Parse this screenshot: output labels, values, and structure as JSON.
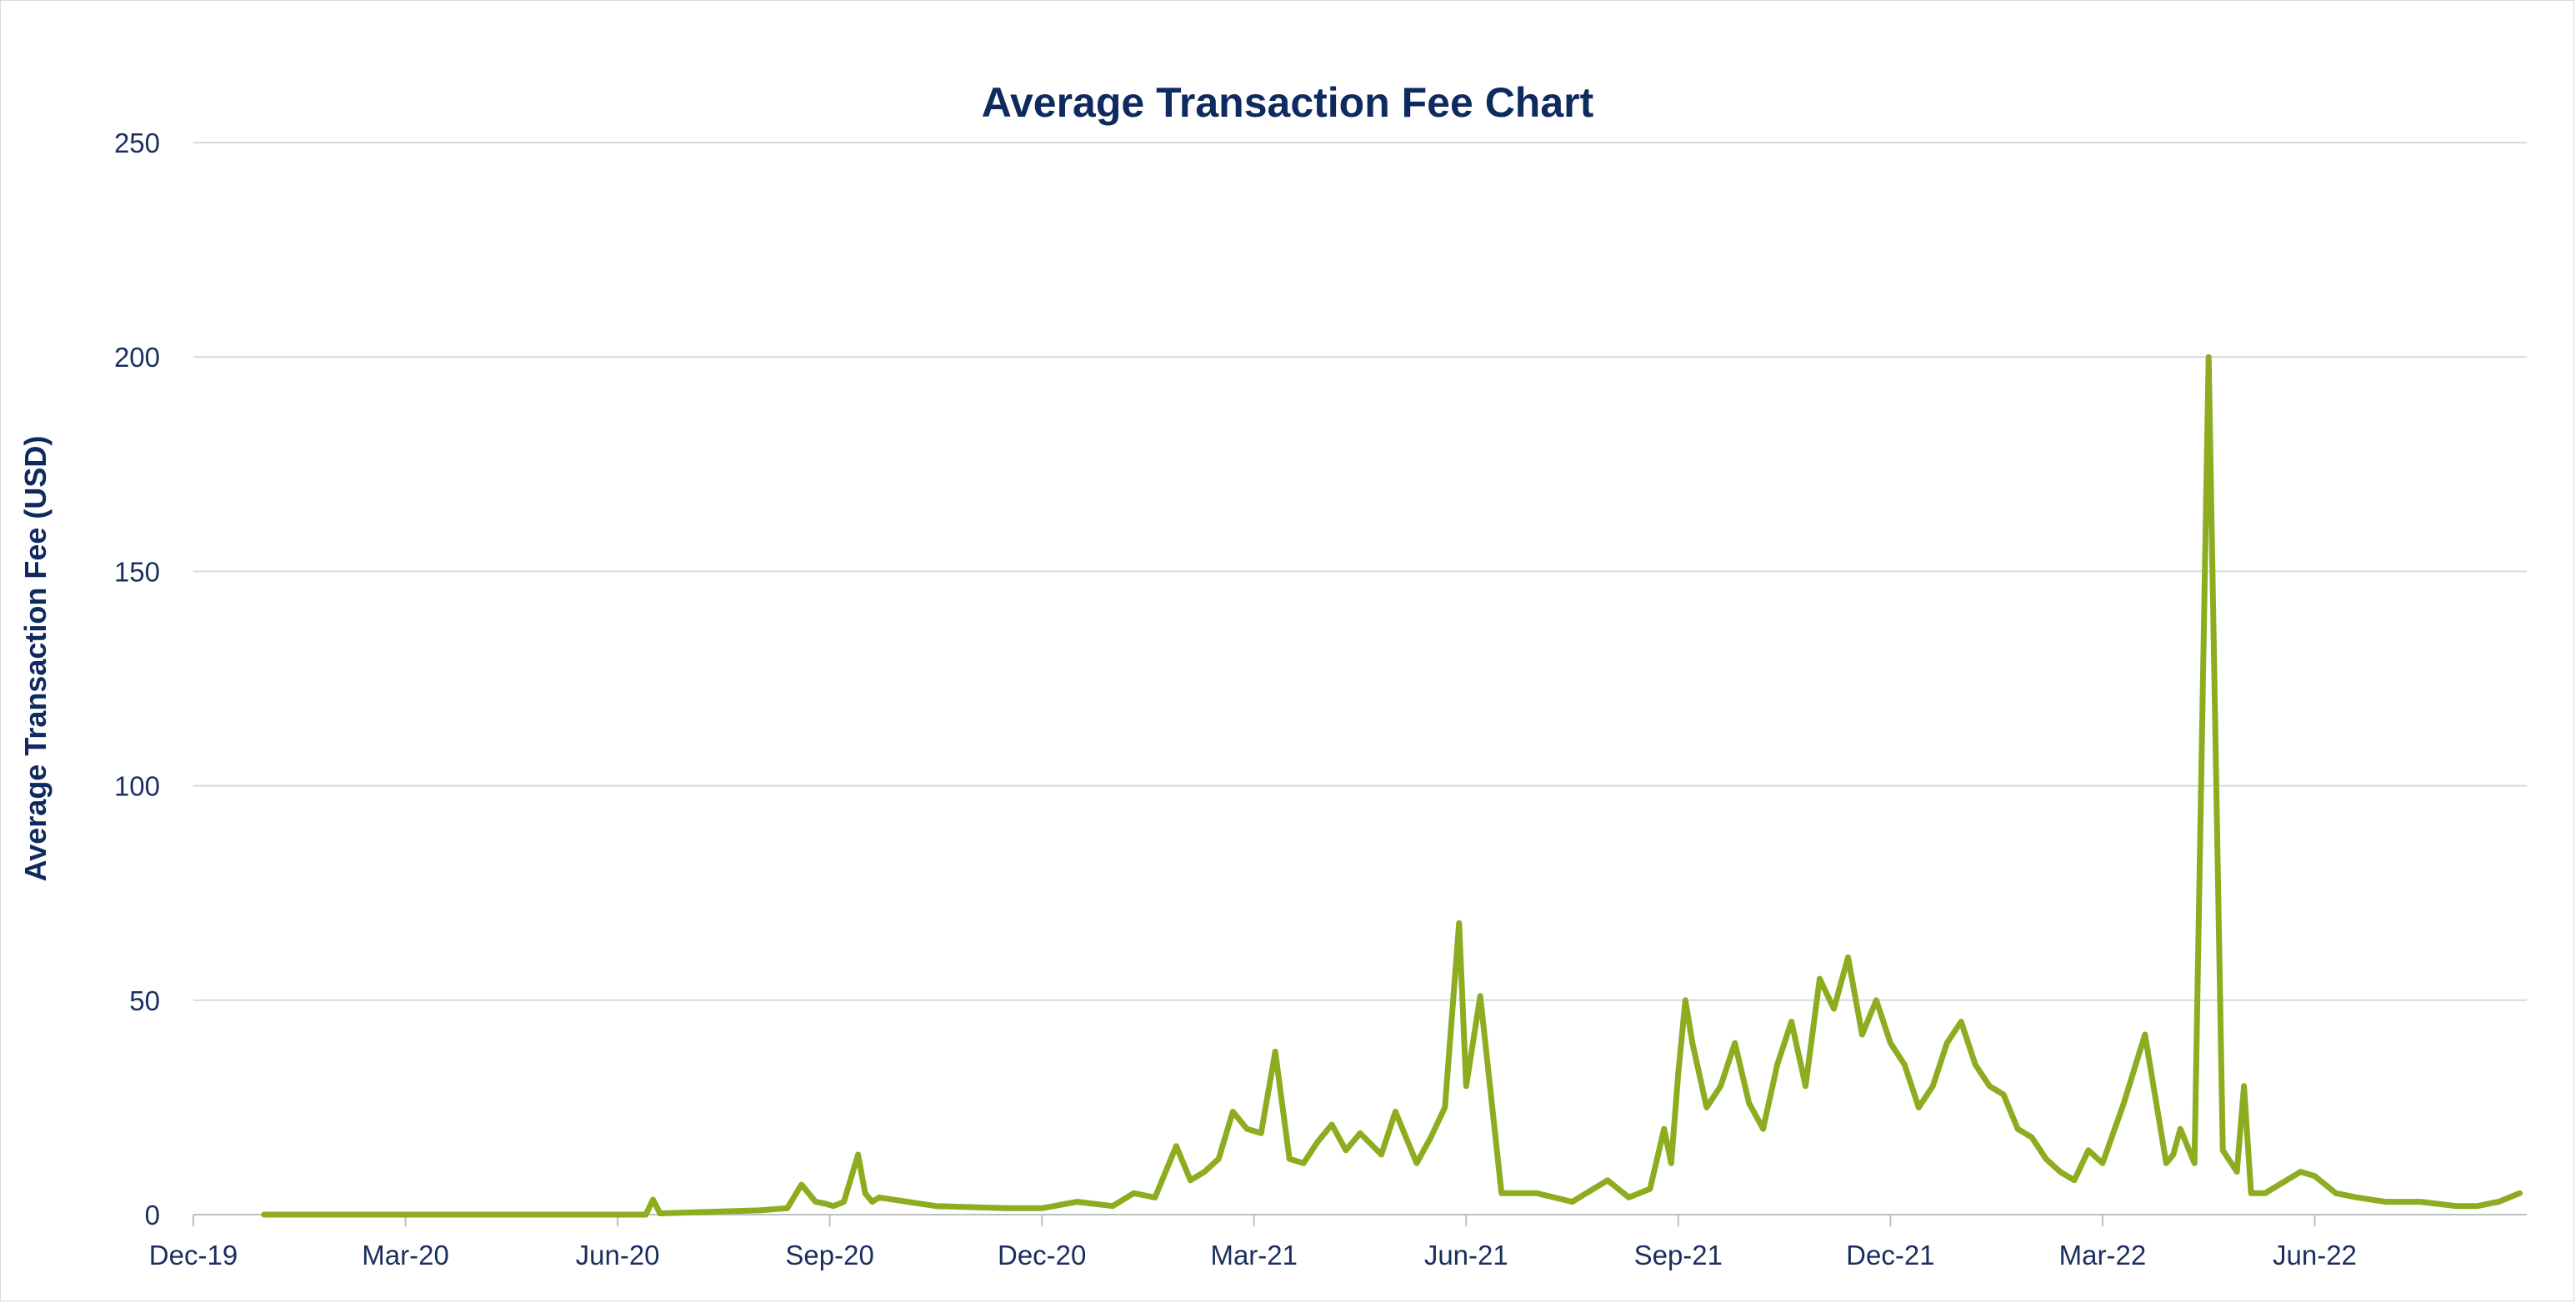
{
  "chart_data": {
    "type": "line",
    "title": "Average Transaction Fee Chart",
    "xlabel": "",
    "ylabel": "Average Transaction Fee (USD)",
    "ylim": [
      0,
      250
    ],
    "yticks": [
      0,
      50,
      100,
      150,
      200,
      250
    ],
    "xlim": [
      0,
      33
    ],
    "grid": true,
    "legend": "none",
    "line_color": "#8dac1f",
    "xtick_labels": [
      "Dec-19",
      "Mar-20",
      "Jun-20",
      "Sep-20",
      "Dec-20",
      "Mar-21",
      "Jun-21",
      "Sep-21",
      "Dec-21",
      "Mar-22",
      "Jun-22"
    ],
    "xtick_positions": [
      0,
      3,
      6,
      9,
      12,
      15,
      18,
      21,
      24,
      27,
      30
    ],
    "series": [
      {
        "name": "Average Transaction Fee (USD)",
        "x_unit": "months since Dec-19",
        "x": [
          1.0,
          3.0,
          5.0,
          6.4,
          6.5,
          6.6,
          8.0,
          8.4,
          8.6,
          8.8,
          8.95,
          9.05,
          9.2,
          9.4,
          9.5,
          9.6,
          9.7,
          10.5,
          11.5,
          12.0,
          12.5,
          13.0,
          13.3,
          13.6,
          13.9,
          14.1,
          14.3,
          14.5,
          14.7,
          14.9,
          15.1,
          15.3,
          15.5,
          15.7,
          15.9,
          16.1,
          16.3,
          16.5,
          16.8,
          17.0,
          17.3,
          17.5,
          17.7,
          17.9,
          18.0,
          18.2,
          18.5,
          19.0,
          19.5,
          20.0,
          20.3,
          20.6,
          20.8,
          20.9,
          21.0,
          21.1,
          21.2,
          21.4,
          21.6,
          21.8,
          22.0,
          22.2,
          22.4,
          22.6,
          22.8,
          23.0,
          23.2,
          23.4,
          23.6,
          23.8,
          24.0,
          24.2,
          24.4,
          24.6,
          24.8,
          25.0,
          25.2,
          25.4,
          25.6,
          25.8,
          26.0,
          26.2,
          26.4,
          26.6,
          26.8,
          27.0,
          27.3,
          27.6,
          27.9,
          28.0,
          28.1,
          28.3,
          28.5,
          28.7,
          28.9,
          29.0,
          29.1,
          29.3,
          29.5,
          29.8,
          30.0,
          30.3,
          30.6,
          31.0,
          31.5,
          32.0,
          32.3,
          32.6,
          32.9
        ],
        "values": [
          0,
          0,
          0,
          0,
          3.5,
          0.3,
          1,
          1.5,
          7,
          3,
          2.5,
          2,
          3,
          14,
          5,
          3,
          4,
          2,
          1.5,
          1.5,
          3,
          2,
          5,
          4,
          16,
          8,
          10,
          13,
          24,
          20,
          19,
          38,
          13,
          12,
          17,
          21,
          15,
          19,
          14,
          24,
          12,
          18,
          25,
          68,
          30,
          51,
          5,
          5,
          3,
          8,
          4,
          6,
          20,
          12,
          33,
          50,
          40,
          25,
          30,
          40,
          26,
          20,
          35,
          45,
          30,
          55,
          48,
          60,
          42,
          50,
          40,
          35,
          25,
          30,
          40,
          45,
          35,
          30,
          28,
          20,
          18,
          13,
          10,
          8,
          15,
          12,
          26,
          42,
          12,
          14,
          20,
          12,
          200,
          15,
          10,
          30,
          5,
          5,
          7,
          10,
          9,
          5,
          4,
          3,
          3,
          2,
          2,
          3,
          5
        ]
      }
    ]
  }
}
